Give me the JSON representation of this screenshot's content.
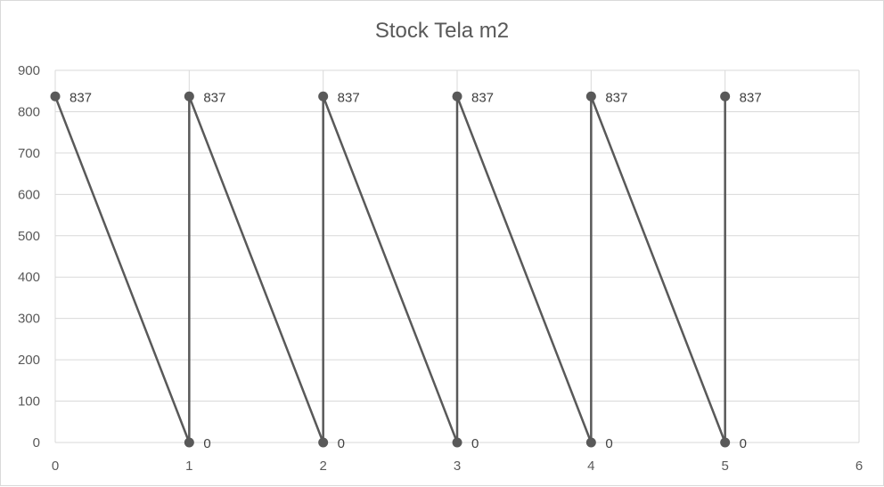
{
  "chart_data": {
    "type": "scatter",
    "title": "Stock Tela m2",
    "xlabel": "",
    "ylabel": "",
    "xlim": [
      0,
      6
    ],
    "ylim": [
      0,
      900
    ],
    "xticks": [
      0,
      1,
      2,
      3,
      4,
      5,
      6
    ],
    "yticks": [
      0,
      100,
      200,
      300,
      400,
      500,
      600,
      700,
      800,
      900
    ],
    "grid": true,
    "legend": "none",
    "line_color": "#595959",
    "series": [
      {
        "points": [
          [
            0,
            837
          ],
          [
            1,
            0
          ],
          [
            1,
            837
          ],
          [
            2,
            0
          ],
          [
            2,
            837
          ],
          [
            3,
            0
          ],
          [
            3,
            837
          ],
          [
            4,
            0
          ],
          [
            4,
            837
          ],
          [
            5,
            0
          ],
          [
            5,
            837
          ]
        ],
        "data_labels": true,
        "style": "lines-and-markers"
      }
    ]
  }
}
